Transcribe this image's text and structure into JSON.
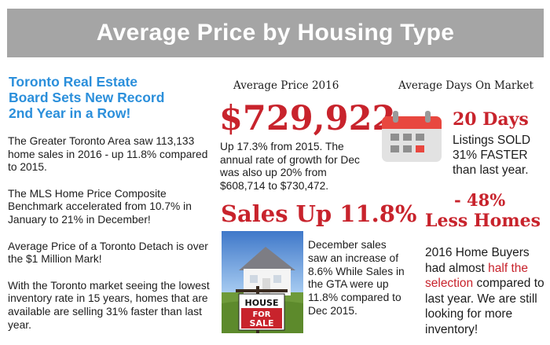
{
  "header": {
    "title": "Average Price by Housing Type"
  },
  "left": {
    "headline": "Toronto Real Estate\nBoard Sets New Record\n2nd Year in a Row!",
    "paragraphs": [
      "The Greater Toronto Area saw 113,133 home sales in 2016 - up 11.8% compared to 2015.",
      "The MLS Home Price Composite Benchmark accelerated from 10.7% in January to 21% in December!",
      "Average Price of a Toronto Detach is over the $1 Million Mark!",
      "With the Toronto market seeing the lowest inventory rate in 15 years, homes that are available are selling 31% faster than last year."
    ]
  },
  "price": {
    "label": "Average Price 2016",
    "value": "$729,922",
    "description": "Up 17.3% from 2015. The annual rate of growth for Dec was also up 20% from $608,714 to $730,472."
  },
  "days": {
    "label": "Average Days On Market",
    "value": "20 Days",
    "description": "Listings SOLD 31% FASTER than last year."
  },
  "sales": {
    "headline": "Sales Up 11.8%",
    "description": "December sales saw an increase of 8.6% While Sales in the GTA were up 11.8% compared to Dec 2015."
  },
  "sign": {
    "line1": "HOUSE",
    "line2": "FOR",
    "line3": "SALE"
  },
  "homes": {
    "headline_line1": "- 48%",
    "headline_line2": "Less Homes",
    "description_before": "2016 Home Buyers had almost ",
    "description_highlight": "half the selection",
    "description_after": " compared to last year. We are still looking for more inventory!"
  },
  "colors": {
    "accent_red": "#c8232c",
    "headline_blue": "#2b8fdb",
    "header_gray": "#a5a5a5"
  },
  "icons": {
    "calendar": "calendar-icon",
    "house": "house-for-sale-image"
  }
}
